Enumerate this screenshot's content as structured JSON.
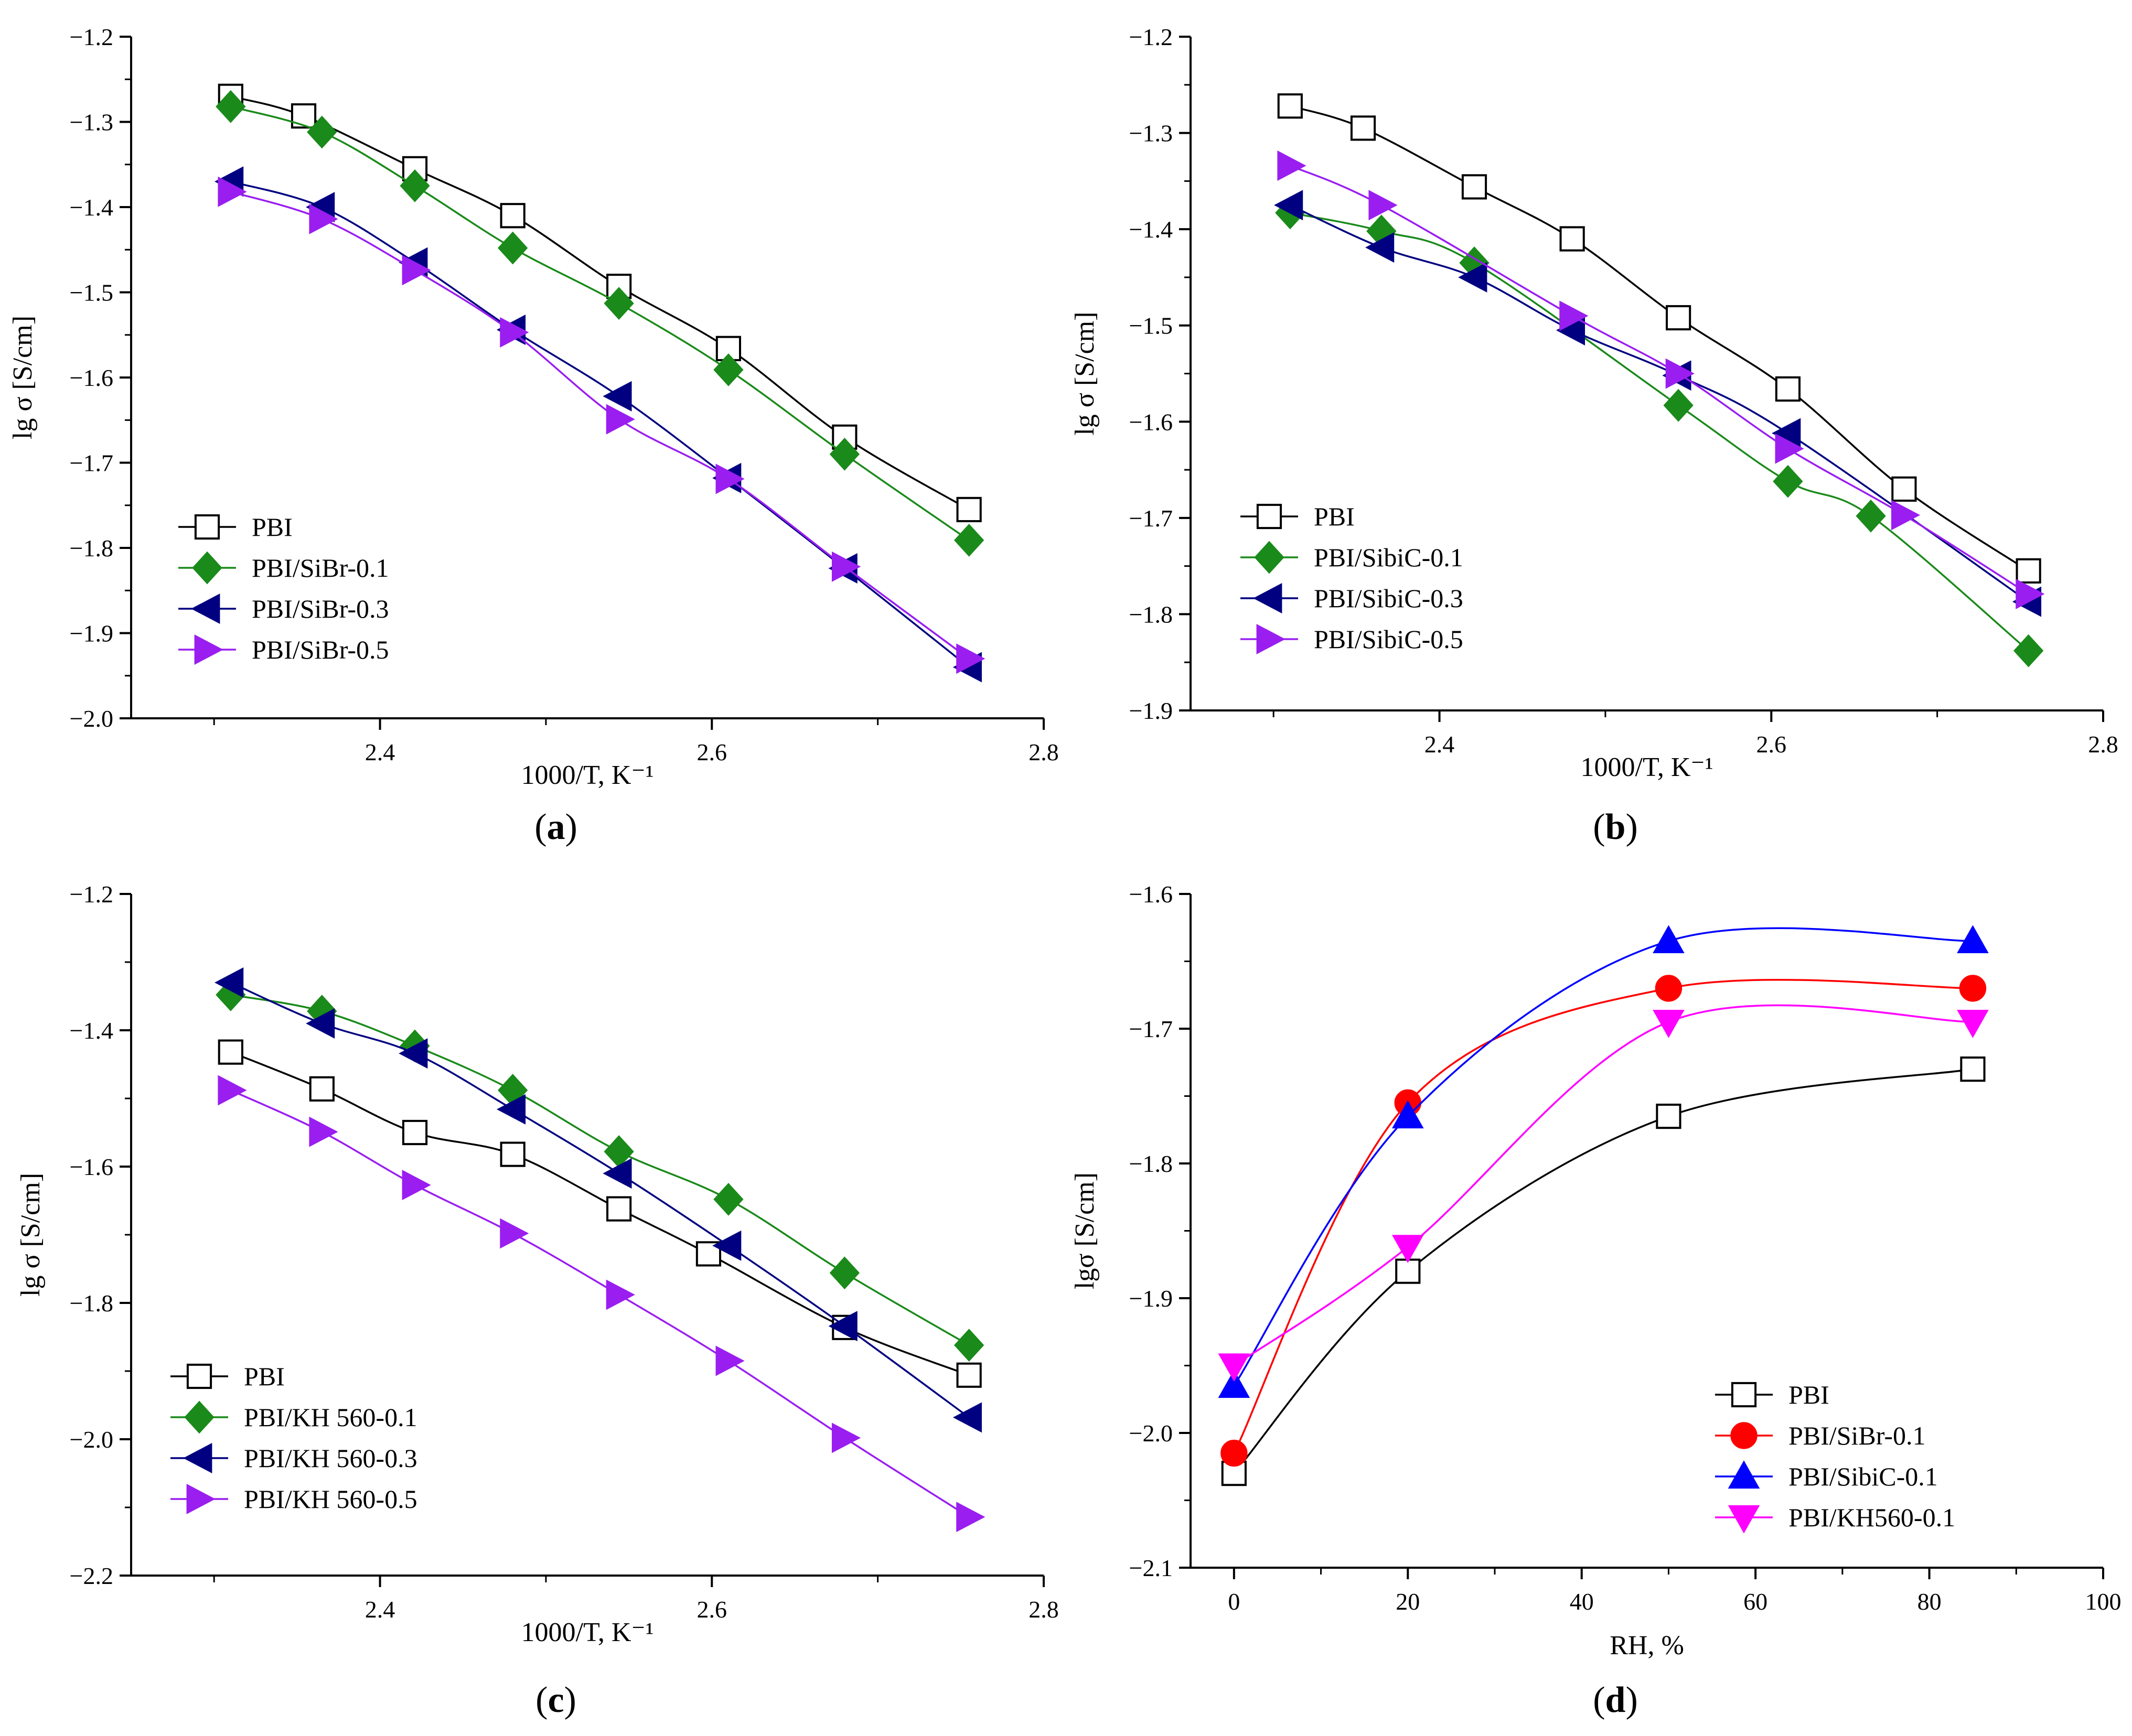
{
  "chart_data": [
    {
      "panel": "(a)",
      "type": "line",
      "xlabel": "1000/T, K⁻¹",
      "ylabel": "lg σ [S/cm]",
      "xlim": [
        2.25,
        2.8
      ],
      "ylim": [
        -2.0,
        -1.2
      ],
      "xticks": [
        2.4,
        2.6,
        2.8
      ],
      "yticks": [
        -1.2,
        -1.3,
        -1.4,
        -1.5,
        -1.6,
        -1.7,
        -1.8,
        -1.9,
        -2.0
      ],
      "legend_position": "bottom-left",
      "series": [
        {
          "name": "PBI",
          "marker": "square-open",
          "color": "#000000",
          "x": [
            2.31,
            2.354,
            2.421,
            2.48,
            2.544,
            2.61,
            2.68,
            2.755
          ],
          "y": [
            -1.27,
            -1.293,
            -1.355,
            -1.41,
            -1.493,
            -1.566,
            -1.67,
            -1.755
          ]
        },
        {
          "name": "PBI/SiBr-0.1",
          "marker": "diamond",
          "color": "#1a8a1a",
          "x": [
            2.31,
            2.365,
            2.421,
            2.48,
            2.544,
            2.61,
            2.68,
            2.755
          ],
          "y": [
            -1.282,
            -1.312,
            -1.375,
            -1.448,
            -1.513,
            -1.591,
            -1.69,
            -1.791
          ]
        },
        {
          "name": "PBI/SiBr-0.3",
          "marker": "triangle-left",
          "color": "#000080",
          "x": [
            2.31,
            2.365,
            2.421,
            2.48,
            2.544,
            2.61,
            2.68,
            2.755
          ],
          "y": [
            -1.37,
            -1.4,
            -1.465,
            -1.544,
            -1.622,
            -1.718,
            -1.824,
            -1.94
          ]
        },
        {
          "name": "PBI/SiBr-0.5",
          "marker": "triangle-right",
          "color": "#9a1ef0",
          "x": [
            2.31,
            2.365,
            2.421,
            2.48,
            2.544,
            2.61,
            2.68,
            2.755
          ],
          "y": [
            -1.382,
            -1.414,
            -1.474,
            -1.547,
            -1.649,
            -1.719,
            -1.822,
            -1.93
          ]
        }
      ]
    },
    {
      "panel": "(b)",
      "type": "line",
      "xlabel": "1000/T, K⁻¹",
      "ylabel": "lg σ [S/cm]",
      "xlim": [
        2.25,
        2.8
      ],
      "ylim": [
        -1.9,
        -1.2
      ],
      "xticks": [
        2.4,
        2.6,
        2.8
      ],
      "yticks": [
        -1.2,
        -1.3,
        -1.4,
        -1.5,
        -1.6,
        -1.7,
        -1.8,
        -1.9
      ],
      "legend_position": "bottom-left",
      "series": [
        {
          "name": "PBI",
          "marker": "square-open",
          "color": "#000000",
          "x": [
            2.31,
            2.354,
            2.421,
            2.48,
            2.544,
            2.61,
            2.68,
            2.755
          ],
          "y": [
            -1.272,
            -1.295,
            -1.356,
            -1.41,
            -1.492,
            -1.566,
            -1.67,
            -1.755
          ]
        },
        {
          "name": "PBI/SibiC-0.1",
          "marker": "diamond",
          "color": "#1a8a1a",
          "x": [
            2.31,
            2.365,
            2.421,
            2.544,
            2.61,
            2.66,
            2.755
          ],
          "y": [
            -1.383,
            -1.402,
            -1.435,
            -1.583,
            -1.662,
            -1.698,
            -1.838
          ]
        },
        {
          "name": "PBI/SibiC-0.3",
          "marker": "triangle-left",
          "color": "#000080",
          "x": [
            2.31,
            2.365,
            2.421,
            2.48,
            2.544,
            2.61,
            2.755
          ],
          "y": [
            -1.375,
            -1.419,
            -1.45,
            -1.505,
            -1.552,
            -1.612,
            -1.787
          ]
        },
        {
          "name": "PBI/SibiC-0.5",
          "marker": "triangle-right",
          "color": "#9a1ef0",
          "x": [
            2.31,
            2.365,
            2.48,
            2.544,
            2.61,
            2.68,
            2.755
          ],
          "y": [
            -1.334,
            -1.375,
            -1.49,
            -1.55,
            -1.628,
            -1.697,
            -1.779
          ]
        }
      ]
    },
    {
      "panel": "(c)",
      "type": "line",
      "xlabel": "1000/T, K⁻¹",
      "ylabel": "lg σ [S/cm]",
      "xlim": [
        2.25,
        2.8
      ],
      "ylim": [
        -2.2,
        -1.2
      ],
      "xticks": [
        2.4,
        2.6,
        2.8
      ],
      "yticks": [
        -1.2,
        -1.4,
        -1.6,
        -1.8,
        -2.0,
        -2.2
      ],
      "legend_position": "bottom-left",
      "series": [
        {
          "name": "PBI",
          "marker": "square-open",
          "color": "#000000",
          "x": [
            2.31,
            2.365,
            2.421,
            2.48,
            2.544,
            2.598,
            2.68,
            2.755
          ],
          "y": [
            -1.432,
            -1.486,
            -1.55,
            -1.582,
            -1.662,
            -1.728,
            -1.836,
            -1.906
          ]
        },
        {
          "name": "PBI/KH 560-0.1",
          "marker": "diamond",
          "color": "#1a8a1a",
          "x": [
            2.31,
            2.365,
            2.421,
            2.48,
            2.544,
            2.61,
            2.68,
            2.755
          ],
          "y": [
            -1.348,
            -1.372,
            -1.423,
            -1.488,
            -1.578,
            -1.648,
            -1.756,
            -1.862
          ]
        },
        {
          "name": "PBI/KH 560-0.3",
          "marker": "triangle-left",
          "color": "#000080",
          "x": [
            2.31,
            2.365,
            2.421,
            2.48,
            2.544,
            2.61,
            2.68,
            2.755
          ],
          "y": [
            -1.33,
            -1.39,
            -1.434,
            -1.516,
            -1.61,
            -1.716,
            -1.834,
            -1.968
          ]
        },
        {
          "name": "PBI/KH 560-0.5",
          "marker": "triangle-right",
          "color": "#9a1ef0",
          "x": [
            2.31,
            2.365,
            2.421,
            2.48,
            2.544,
            2.61,
            2.68,
            2.755
          ],
          "y": [
            -1.488,
            -1.549,
            -1.627,
            -1.698,
            -1.788,
            -1.885,
            -1.998,
            -2.114
          ]
        }
      ]
    },
    {
      "panel": "(d)",
      "type": "line",
      "xlabel": "RH, %",
      "ylabel": "lgσ [S/cm]",
      "xlim": [
        -5,
        100
      ],
      "ylim": [
        -2.1,
        -1.6
      ],
      "xticks": [
        0,
        20,
        40,
        60,
        80,
        100
      ],
      "yticks": [
        -1.6,
        -1.7,
        -1.8,
        -1.9,
        -2.0,
        -2.1
      ],
      "legend_position": "bottom-right",
      "series": [
        {
          "name": "PBI",
          "marker": "square-open",
          "color": "#000000",
          "x": [
            0,
            20,
            50,
            85
          ],
          "y": [
            -2.03,
            -1.88,
            -1.765,
            -1.73
          ]
        },
        {
          "name": "PBI/SiBr-0.1",
          "marker": "circle",
          "color": "#ff0000",
          "x": [
            0,
            20,
            50,
            85
          ],
          "y": [
            -2.015,
            -1.755,
            -1.67,
            -1.67
          ]
        },
        {
          "name": "PBI/SibiC-0.1",
          "marker": "triangle-up",
          "color": "#0000ff",
          "x": [
            0,
            20,
            50,
            85
          ],
          "y": [
            -1.965,
            -1.765,
            -1.635,
            -1.635
          ]
        },
        {
          "name": "PBI/KH560-0.1",
          "marker": "triangle-down",
          "color": "#ff00ff",
          "x": [
            0,
            20,
            50,
            85
          ],
          "y": [
            -1.95,
            -1.862,
            -1.695,
            -1.695
          ]
        }
      ]
    }
  ]
}
